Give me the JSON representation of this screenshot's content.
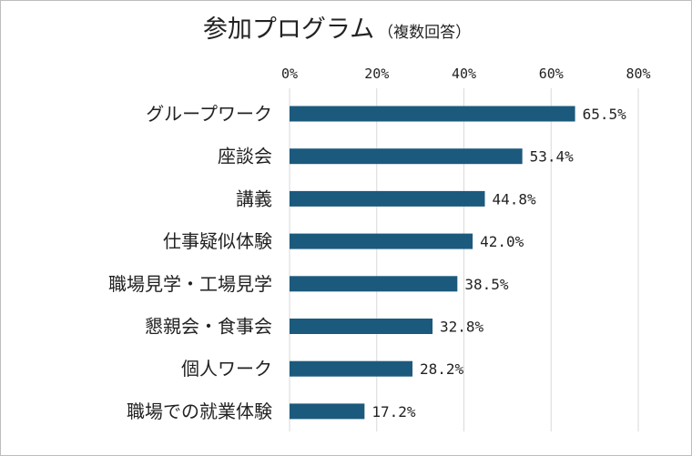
{
  "chart_data": {
    "type": "bar",
    "orientation": "horizontal",
    "title": "参加プログラム",
    "subtitle": "（複数回答）",
    "categories": [
      "グループワーク",
      "座談会",
      "講義",
      "仕事疑似体験",
      "職場見学・工場見学",
      "懇親会・食事会",
      "個人ワーク",
      "職場での就業体験"
    ],
    "values": [
      65.5,
      53.4,
      44.8,
      42.0,
      38.5,
      32.8,
      28.2,
      17.2
    ],
    "value_labels": [
      "65.5%",
      "53.4%",
      "44.8%",
      "42.0%",
      "38.5%",
      "32.8%",
      "28.2%",
      "17.2%"
    ],
    "xlim": [
      0,
      80
    ],
    "x_ticks": [
      0,
      20,
      40,
      60,
      80
    ],
    "x_tick_labels": [
      "0%",
      "20%",
      "40%",
      "60%",
      "80%"
    ],
    "x_axis_position": "top",
    "grid": "vertical",
    "legend": "none",
    "colors": {
      "bar": "#1c5a7d",
      "grid": "#d9d9d9",
      "text": "#222222"
    }
  }
}
